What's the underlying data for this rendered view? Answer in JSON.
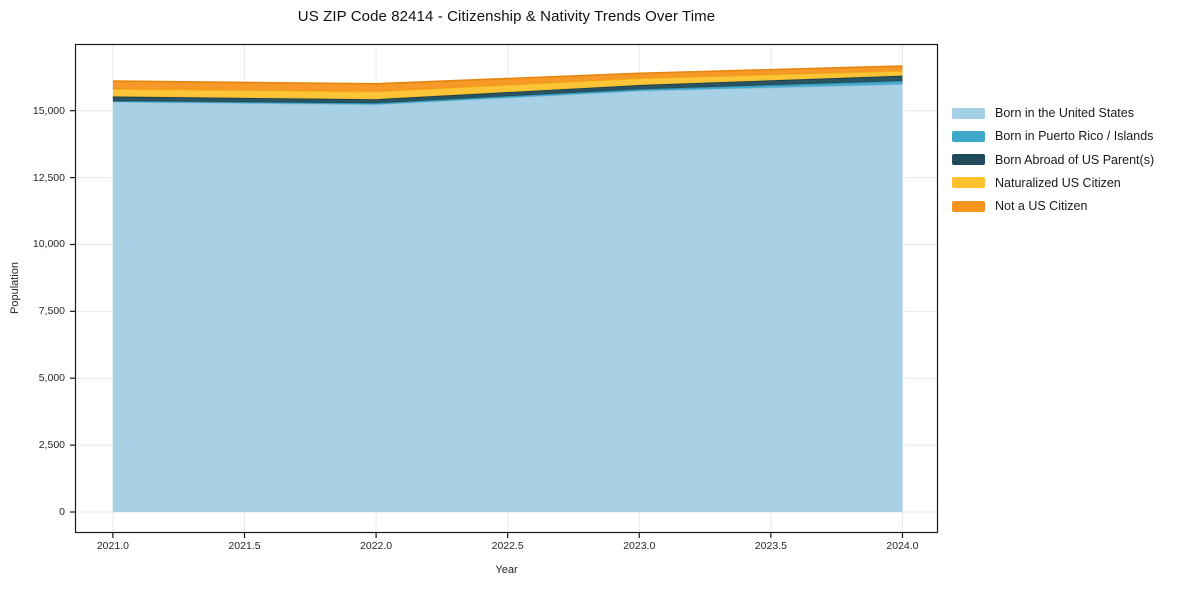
{
  "title": "US ZIP Code 82414 - Citizenship & Nativity Trends Over Time",
  "chart_data": {
    "type": "area",
    "stacked": true,
    "title": "US ZIP Code 82414 - Citizenship & Nativity Trends Over Time",
    "xlabel": "Year",
    "ylabel": "Population",
    "x": [
      2021,
      2022,
      2023,
      2024
    ],
    "series": [
      {
        "name": "Born in the United States",
        "color": "#a4cfe4",
        "edge": "#8fc0da",
        "values": [
          15330,
          15230,
          15740,
          15990
        ]
      },
      {
        "name": "Born in Puerto Rico / Islands",
        "color": "#3ea8c9",
        "edge": "#3494b3",
        "values": [
          30,
          50,
          60,
          120
        ]
      },
      {
        "name": "Born Abroad of US Parent(s)",
        "color": "#1f4a5a",
        "edge": "#183d4b",
        "values": [
          170,
          150,
          160,
          200
        ]
      },
      {
        "name": "Naturalized US Citizen",
        "color": "#fcc22d",
        "edge": "#efb31b",
        "values": [
          280,
          285,
          250,
          175
        ]
      },
      {
        "name": "Not a US Citizen",
        "color": "#f5941e",
        "edge": "#e5860f",
        "values": [
          300,
          290,
          190,
          185
        ]
      }
    ],
    "totals": [
      16110,
      16005,
      16400,
      16670
    ],
    "x_ticks": [
      {
        "value": 2021,
        "label": "2021.0"
      },
      {
        "value": 2021.5,
        "label": "2021.5"
      },
      {
        "value": 2022,
        "label": "2022.0"
      },
      {
        "value": 2022.5,
        "label": "2022.5"
      },
      {
        "value": 2023,
        "label": "2023.0"
      },
      {
        "value": 2023.5,
        "label": "2023.5"
      },
      {
        "value": 2024,
        "label": "2024.0"
      }
    ],
    "y_ticks": [
      {
        "value": 0,
        "label": "0"
      },
      {
        "value": 2500,
        "label": "2,500"
      },
      {
        "value": 5000,
        "label": "5,000"
      },
      {
        "value": 7500,
        "label": "7,500"
      },
      {
        "value": 10000,
        "label": "10,000"
      },
      {
        "value": 12500,
        "label": "12,500"
      },
      {
        "value": 15000,
        "label": "15,000"
      }
    ],
    "xlim": [
      2020.856,
      2024.135
    ],
    "ylim": [
      -785,
      17493
    ],
    "grid": true,
    "legend_position": "right"
  },
  "colors": {
    "background": "#ffffff",
    "grid": "#e9e9ef",
    "spine": "#1a1a1a",
    "tick": "#1a1a1a",
    "text": "#262626"
  }
}
